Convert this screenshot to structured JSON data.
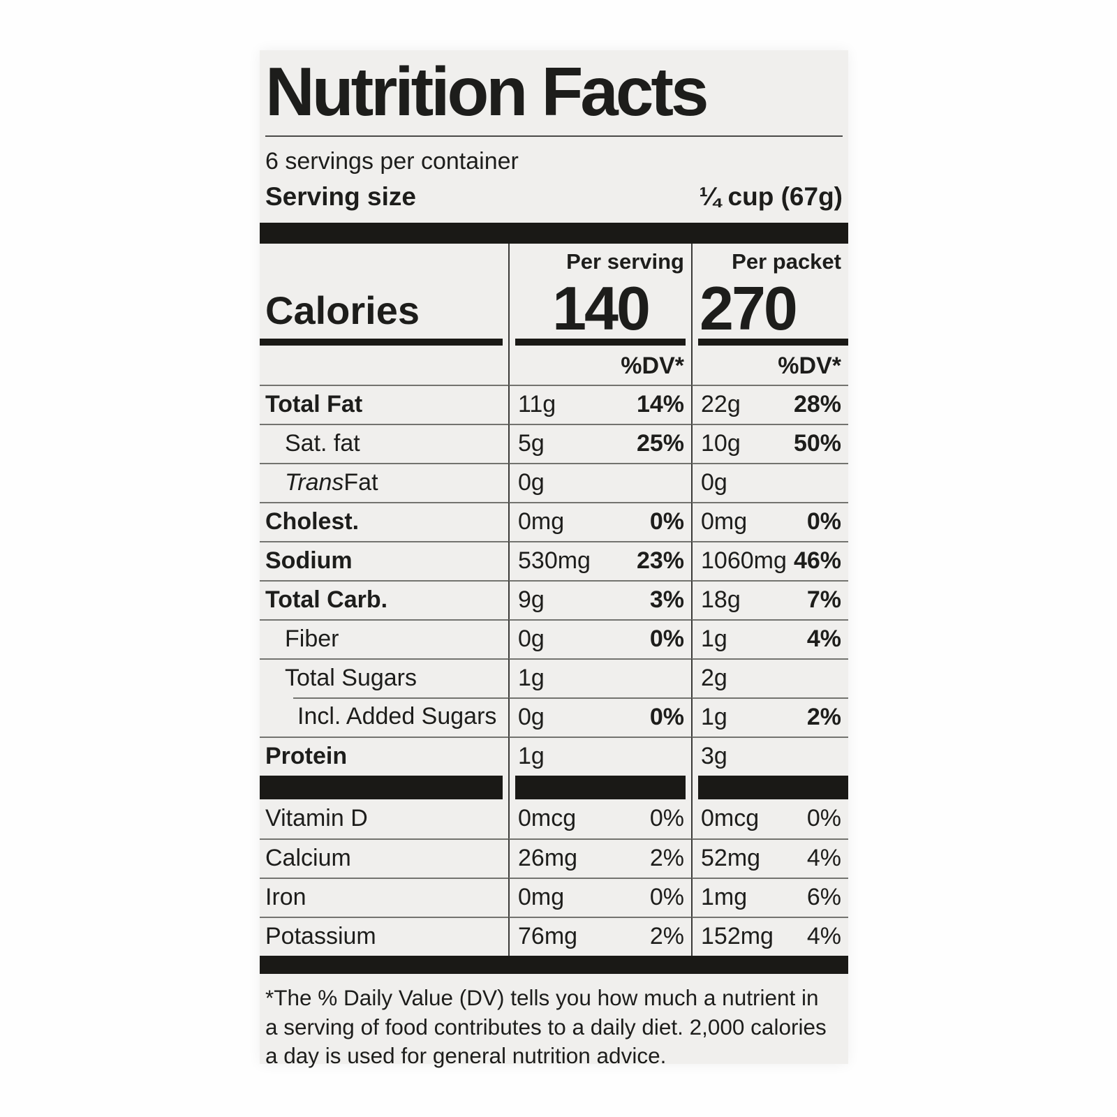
{
  "label": {
    "title": "Nutrition Facts",
    "servings_per_container": "6 servings per container",
    "serving_size_label": "Serving size",
    "serving_size_value": "¼ cup (67g)",
    "calories": {
      "label": "Calories",
      "dv_header": "%DV*",
      "columns": [
        {
          "header": "Per serving",
          "value": "140"
        },
        {
          "header": "Per packet",
          "value": "270"
        }
      ]
    },
    "nutrients": [
      {
        "name": "Total Fat",
        "bold": true,
        "indent": 0,
        "topline": "full",
        "serving_amount": "11g",
        "serving_dv": "14%",
        "packet_amount": "22g",
        "packet_dv": "28%"
      },
      {
        "name": "Sat. fat",
        "bold": false,
        "indent": 1,
        "topline": "full",
        "serving_amount": "5g",
        "serving_dv": "25%",
        "packet_amount": "10g",
        "packet_dv": "50%"
      },
      {
        "name": "Trans Fat",
        "name_parts": [
          {
            "text": "Trans",
            "italic": true
          },
          {
            "text": " Fat",
            "italic": false
          }
        ],
        "bold": false,
        "indent": 1,
        "topline": "full",
        "serving_amount": "0g",
        "serving_dv": "",
        "packet_amount": "0g",
        "packet_dv": ""
      },
      {
        "name": "Cholest.",
        "bold": true,
        "indent": 0,
        "topline": "full",
        "serving_amount": "0mg",
        "serving_dv": "0%",
        "packet_amount": "0mg",
        "packet_dv": "0%"
      },
      {
        "name": "Sodium",
        "bold": true,
        "indent": 0,
        "topline": "full",
        "serving_amount": "530mg",
        "serving_dv": "23%",
        "packet_amount": "1060mg",
        "packet_dv": "46%"
      },
      {
        "name": "Total Carb.",
        "bold": true,
        "indent": 0,
        "topline": "full",
        "serving_amount": "9g",
        "serving_dv": "3%",
        "packet_amount": "18g",
        "packet_dv": "7%"
      },
      {
        "name": "Fiber",
        "bold": false,
        "indent": 1,
        "topline": "full",
        "serving_amount": "0g",
        "serving_dv": "0%",
        "packet_amount": "1g",
        "packet_dv": "4%"
      },
      {
        "name": "Total Sugars",
        "bold": false,
        "indent": 1,
        "topline": "full",
        "serving_amount": "1g",
        "serving_dv": "",
        "packet_amount": "2g",
        "packet_dv": ""
      },
      {
        "name": "Incl. Added Sugars",
        "bold": false,
        "indent": 2,
        "topline": "indent",
        "serving_amount": "0g",
        "serving_dv": "0%",
        "packet_amount": "1g",
        "packet_dv": "2%"
      },
      {
        "name": "Protein",
        "bold": true,
        "indent": 0,
        "topline": "full",
        "serving_amount": "1g",
        "serving_dv": "",
        "packet_amount": "3g",
        "packet_dv": ""
      }
    ],
    "vitamins": [
      {
        "name": "Vitamin D",
        "topline": "none",
        "serving_amount": "0mcg",
        "serving_dv": "0%",
        "packet_amount": "0mcg",
        "packet_dv": "0%"
      },
      {
        "name": "Calcium",
        "topline": "full",
        "serving_amount": "26mg",
        "serving_dv": "2%",
        "packet_amount": "52mg",
        "packet_dv": "4%"
      },
      {
        "name": "Iron",
        "topline": "full",
        "serving_amount": "0mg",
        "serving_dv": "0%",
        "packet_amount": "1mg",
        "packet_dv": "6%"
      },
      {
        "name": "Potassium",
        "topline": "full",
        "serving_amount": "76mg",
        "serving_dv": "2%",
        "packet_amount": "152mg",
        "packet_dv": "4%"
      }
    ],
    "footnote_lines": [
      "*The % Daily Value (DV) tells you how much a nutrient in",
      "a serving of food contributes to a daily diet. 2,000 calories",
      "a day is used for general nutrition advice."
    ]
  },
  "colors": {
    "label_background": "#f0efed",
    "text": "#1d1d1b",
    "thick_bar": "#1a1916",
    "hairline": "#73736f",
    "page_background": "#fefefe"
  }
}
